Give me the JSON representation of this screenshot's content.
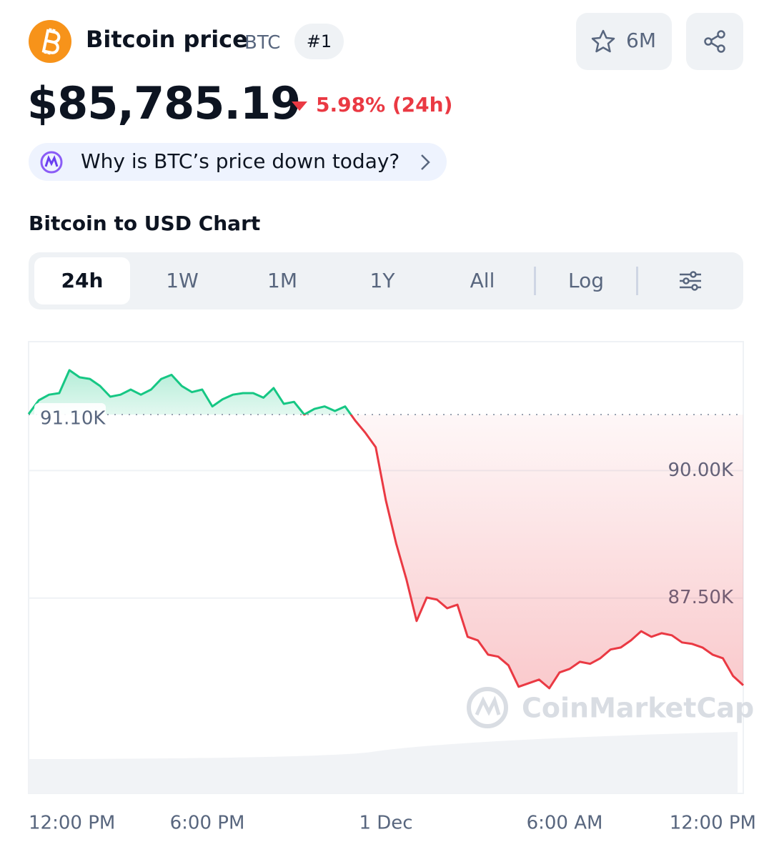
{
  "header": {
    "name": "Bitcoin price",
    "symbol": "BTC",
    "rank": "#1",
    "watchlist": "6M"
  },
  "price": {
    "value": "$85,785.19",
    "change": "5.98% (24h)"
  },
  "insight": "Why is BTC’s price down today?",
  "chart_heading": "Bitcoin to USD Chart",
  "tabs": [
    "24h",
    "1W",
    "1M",
    "1Y",
    "All",
    "Log"
  ],
  "chart_data": {
    "type": "line",
    "values": [
      91110,
      91380,
      91490,
      91520,
      91970,
      91830,
      91800,
      91660,
      91450,
      91490,
      91590,
      91490,
      91590,
      91800,
      91880,
      91660,
      91540,
      91590,
      91260,
      91400,
      91490,
      91520,
      91520,
      91430,
      91620,
      91310,
      91350,
      91100,
      91210,
      91260,
      91170,
      91260,
      90980,
      90740,
      90460,
      89410,
      88570,
      87870,
      87050,
      87510,
      87470,
      87300,
      87370,
      86740,
      86670,
      86390,
      86350,
      86180,
      85760,
      85830,
      85900,
      85730,
      86040,
      86110,
      86250,
      86210,
      86320,
      86490,
      86530,
      86670,
      86850,
      86740,
      86810,
      86770,
      86630,
      86600,
      86530,
      86390,
      86320,
      85970,
      85790
    ],
    "up_color": "#16c784",
    "down_color": "#ea3943",
    "baseline": {
      "value": 91100,
      "label": "91.10K"
    },
    "ylim": [
      85000,
      92530
    ],
    "yticks": [
      {
        "value": 90000,
        "label": "90.00K"
      },
      {
        "value": 87500,
        "label": "87.50K"
      }
    ],
    "xtick_labels": [
      "12:00 PM",
      "6:00 PM",
      "1 Dec",
      "6:00 AM",
      "12:00 PM"
    ],
    "watermark": "CoinMarketCap"
  }
}
